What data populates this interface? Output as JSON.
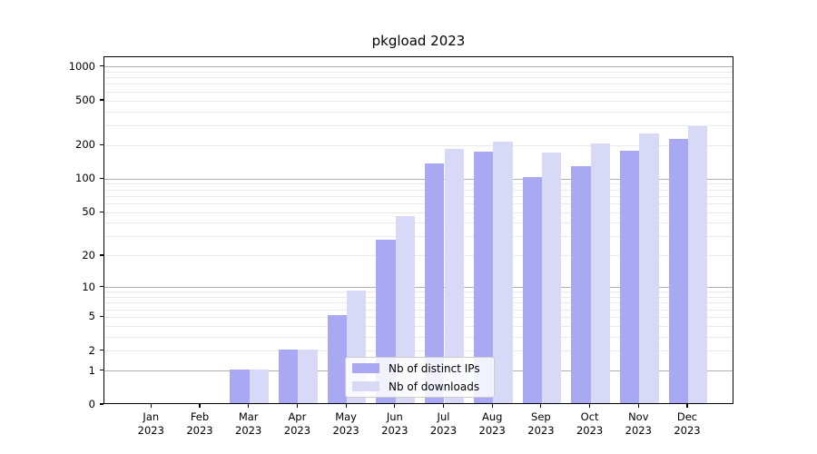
{
  "figure": {
    "title": "pkgload 2023"
  },
  "chart_data": {
    "type": "bar",
    "title": "pkgload 2023",
    "xlabel": "",
    "ylabel": "",
    "yscale": "log1p",
    "ylim": [
      0,
      1220
    ],
    "grid": true,
    "legend_position": "lower center",
    "categories": [
      "Jan",
      "Feb",
      "Mar",
      "Apr",
      "May",
      "Jun",
      "Jul",
      "Aug",
      "Sep",
      "Oct",
      "Nov",
      "Dec"
    ],
    "year_label": "2023",
    "y_ticks": [
      0,
      1,
      2,
      5,
      10,
      20,
      50,
      100,
      200,
      500,
      1000
    ],
    "y_tick_labels": [
      "0",
      "1",
      "2",
      "5",
      "10",
      "20",
      "50",
      "100",
      "200",
      "500",
      "1000"
    ],
    "major_grid_values": [
      1,
      10,
      100,
      1000
    ],
    "series": [
      {
        "name": "Nb of distinct IPs",
        "color": "#a9a9f3",
        "values": [
          0,
          0,
          1,
          2,
          5,
          27,
          133,
          170,
          100,
          126,
          172,
          222
        ]
      },
      {
        "name": "Nb of downloads",
        "color": "#d8d8f7",
        "values": [
          0,
          0,
          1,
          2,
          9,
          45,
          181,
          210,
          166,
          200,
          245,
          287
        ]
      }
    ],
    "colors": {
      "major_grid": "#b0b0b0",
      "minor_grid": "#e9e9e9",
      "axis": "#000000",
      "background": "#ffffff"
    }
  }
}
